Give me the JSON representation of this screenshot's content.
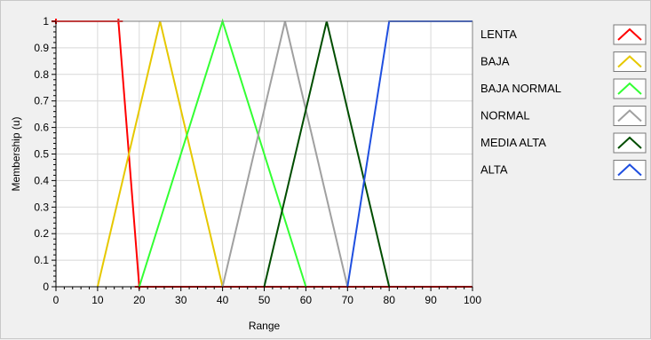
{
  "chart_data": {
    "type": "line",
    "title": "",
    "xlabel": "Range",
    "ylabel": "Membership (u)",
    "xlim": [
      0,
      100
    ],
    "ylim": [
      0,
      1
    ],
    "xticks": [
      "0",
      "10",
      "20",
      "30",
      "40",
      "50",
      "60",
      "70",
      "80",
      "90",
      "100"
    ],
    "yticks": [
      "0",
      "0.1",
      "0.2",
      "0.3",
      "0.4",
      "0.5",
      "0.6",
      "0.7",
      "0.8",
      "0.9",
      "1"
    ],
    "grid": true,
    "legend_position": "right",
    "series": [
      {
        "name": "LENTA",
        "color": "#ff0000",
        "x": [
          0,
          15,
          20,
          100
        ],
        "y": [
          1,
          1,
          0,
          0
        ],
        "display_x": [
          0,
          15,
          20
        ],
        "display_y": [
          1,
          1,
          0
        ],
        "markers": true
      },
      {
        "name": "BAJA",
        "color": "#e6c800",
        "x": [
          10,
          25,
          40
        ],
        "y": [
          0,
          1,
          0
        ]
      },
      {
        "name": "BAJA NORMAL",
        "color": "#33ff33",
        "x": [
          20,
          40,
          60
        ],
        "y": [
          0,
          1,
          0
        ]
      },
      {
        "name": "NORMAL",
        "color": "#a0a0a0",
        "x": [
          40,
          55,
          70
        ],
        "y": [
          0,
          1,
          0
        ]
      },
      {
        "name": "MEDIA ALTA",
        "color": "#004d00",
        "x": [
          50,
          65,
          80
        ],
        "y": [
          0,
          1,
          0
        ]
      },
      {
        "name": "ALTA",
        "color": "#1f4fe0",
        "x": [
          70,
          80,
          100
        ],
        "y": [
          0,
          1,
          1
        ]
      }
    ]
  }
}
